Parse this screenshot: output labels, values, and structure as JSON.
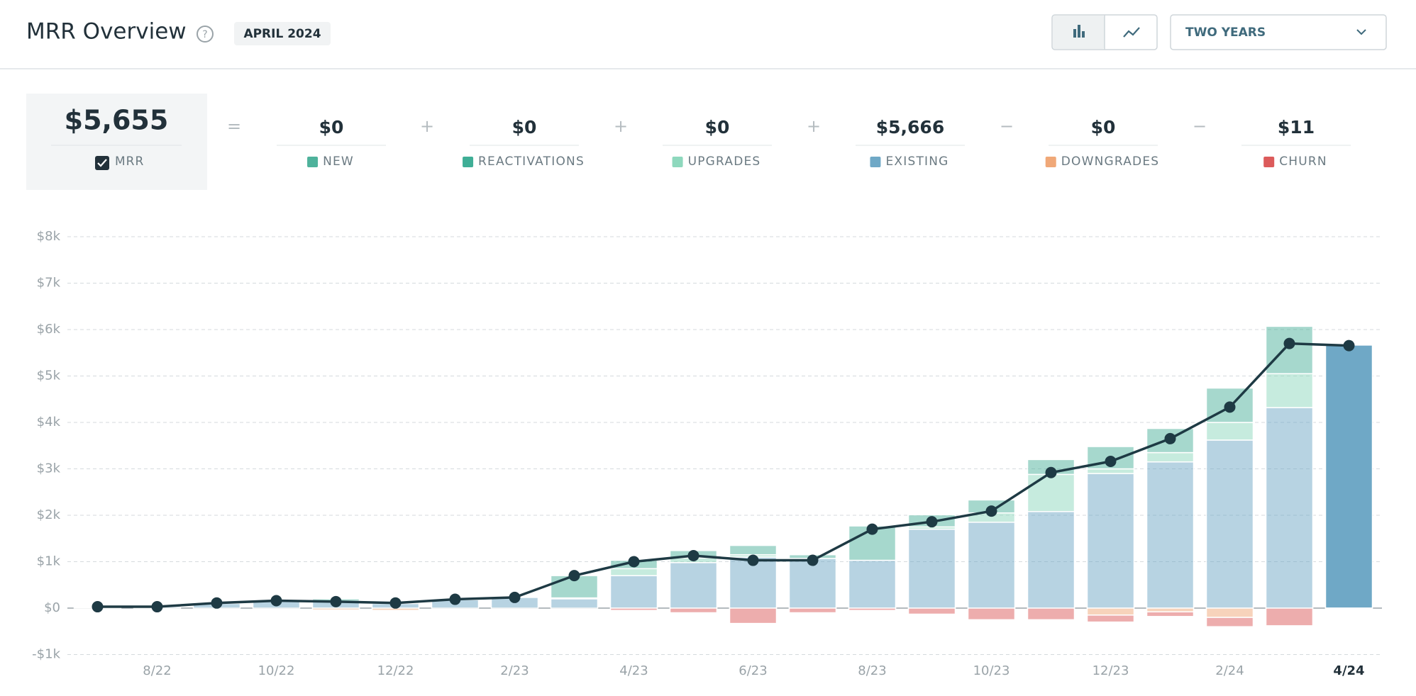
{
  "header": {
    "title": "MRR Overview",
    "help": "?",
    "badge": "APRIL 2024",
    "range": "TWO YEARS"
  },
  "summary": {
    "values": [
      "$5,655",
      "$0",
      "$0",
      "$0",
      "$5,666",
      "$0",
      "$11"
    ],
    "operators": [
      "=",
      "+",
      "+",
      "+",
      "−",
      "−"
    ]
  },
  "chart_data": {
    "type": "bar",
    "categories": [
      null,
      "8/22",
      null,
      "10/22",
      null,
      "12/22",
      null,
      "2/23",
      null,
      "4/23",
      null,
      "6/23",
      null,
      "8/23",
      null,
      "10/23",
      null,
      "12/23",
      null,
      "2/24",
      null,
      "4/24"
    ],
    "series": [
      {
        "name": "NEW",
        "color": "#4eb29b",
        "values": [
          0,
          0,
          0,
          0,
          50,
          50,
          0,
          0,
          480,
          180,
          160,
          200,
          80,
          740,
          260,
          280,
          320,
          480,
          520,
          740,
          1020,
          0
        ]
      },
      {
        "name": "REACTIVATIONS",
        "color": "#3fae96",
        "values": [
          0,
          0,
          0,
          0,
          0,
          0,
          0,
          0,
          0,
          0,
          0,
          0,
          0,
          0,
          0,
          0,
          0,
          0,
          0,
          0,
          0,
          0
        ]
      },
      {
        "name": "UPGRADES",
        "color": "#8ed8bd",
        "values": [
          0,
          0,
          0,
          0,
          0,
          0,
          0,
          0,
          20,
          150,
          100,
          50,
          0,
          0,
          50,
          200,
          800,
          100,
          200,
          380,
          730,
          0
        ]
      },
      {
        "name": "EXISTING",
        "color": "#6fa8c6",
        "values": [
          20,
          30,
          100,
          150,
          150,
          100,
          180,
          230,
          200,
          700,
          980,
          1100,
          1070,
          1030,
          1700,
          1850,
          2080,
          2900,
          3150,
          3620,
          4320,
          5666
        ]
      },
      {
        "name": "DOWNGRADES",
        "color": "#f0a878",
        "values": [
          0,
          0,
          0,
          0,
          -40,
          -50,
          0,
          0,
          0,
          0,
          0,
          0,
          0,
          0,
          0,
          0,
          0,
          -150,
          -80,
          -200,
          0,
          0
        ]
      },
      {
        "name": "CHURN",
        "color": "#dc5b5b",
        "values": [
          0,
          0,
          0,
          0,
          0,
          0,
          0,
          0,
          0,
          -50,
          -100,
          -330,
          -100,
          -50,
          -130,
          -250,
          -250,
          -150,
          -100,
          -200,
          -380,
          -11
        ]
      },
      {
        "name": "MRR",
        "color": "#1e3a44",
        "type": "line",
        "values": [
          30,
          30,
          110,
          160,
          140,
          110,
          190,
          230,
          700,
          1000,
          1130,
          1030,
          1030,
          1700,
          1860,
          2090,
          2920,
          3160,
          3650,
          4330,
          5700,
          5655
        ]
      }
    ],
    "ylim": [
      -1000,
      8000
    ],
    "yticks": [
      {
        "value": -1000,
        "label": "-$1k"
      },
      {
        "value": 0,
        "label": "$0"
      },
      {
        "value": 1000,
        "label": "$1k"
      },
      {
        "value": 2000,
        "label": "$2k"
      },
      {
        "value": 3000,
        "label": "$3k"
      },
      {
        "value": 4000,
        "label": "$4k"
      },
      {
        "value": 5000,
        "label": "$5k"
      },
      {
        "value": 6000,
        "label": "$6k"
      },
      {
        "value": 7000,
        "label": "$7k"
      },
      {
        "value": 8000,
        "label": "$8k"
      }
    ],
    "grid": true
  }
}
